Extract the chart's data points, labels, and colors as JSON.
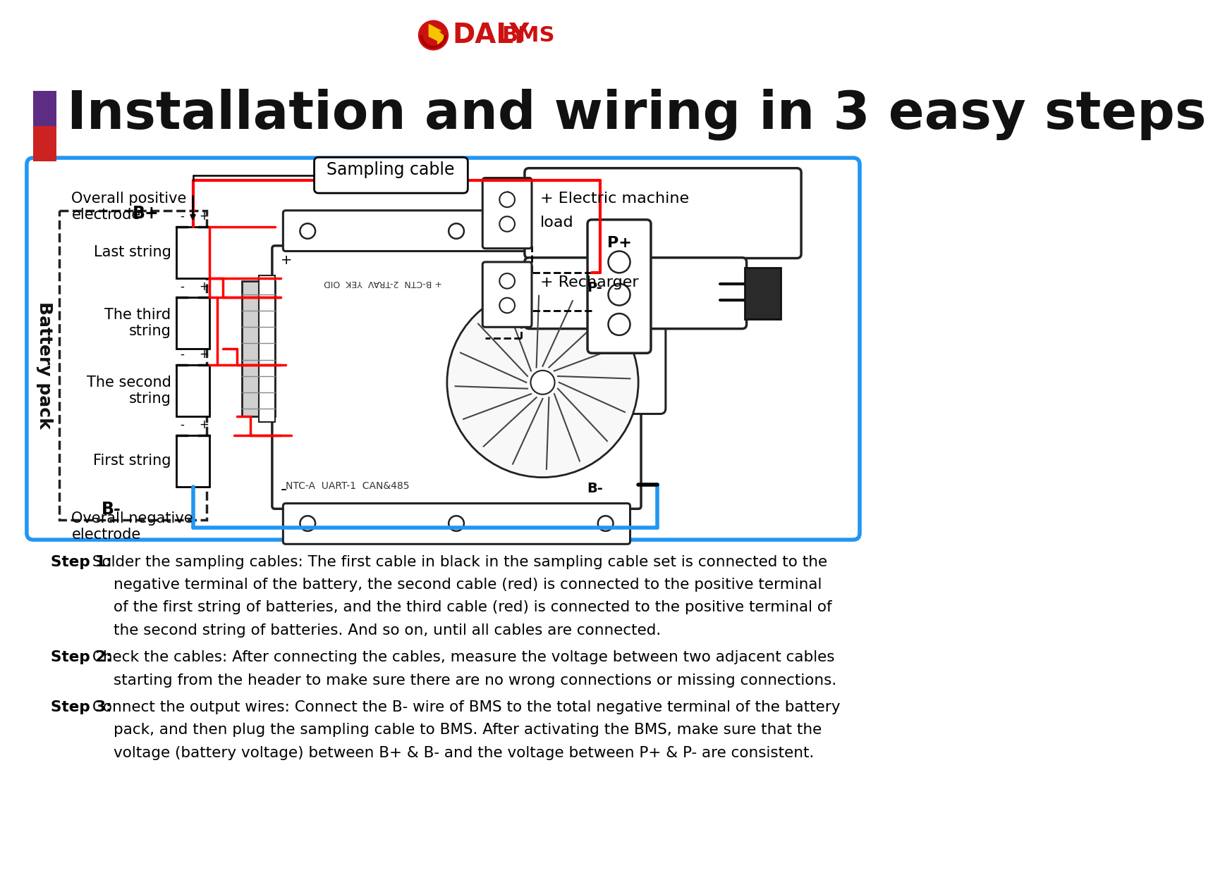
{
  "title": "Installation and wiring in 3 easy steps",
  "bg_color": "#ffffff",
  "step1_bold": "Step 1:",
  "step1_rest": " Solder the sampling cables: The first cable in black in the sampling cable set is connected to the",
  "step1_line2": "negative terminal of the battery, the second cable (red) is connected to the positive terminal",
  "step1_line3": "of the first string of batteries, and the third cable (red) is connected to the positive terminal of",
  "step1_line4": "the second string of batteries. And so on, until all cables are connected.",
  "step2_bold": "Step 2:",
  "step2_rest": " Check the cables: After connecting the cables, measure the voltage between two adjacent cables",
  "step2_line2": "starting from the header to make sure there are no wrong connections or missing connections.",
  "step3_bold": "Step 3:",
  "step3_rest": " Connect the output wires: Connect the B- wire of BMS to the total negative terminal of the battery",
  "step3_line2": "pack, and then plug the sampling cable to BMS. After activating the BMS, make sure that the",
  "step3_line3": "voltage (battery voltage) between B+ & B- and the voltage between P+ & P- are consistent.",
  "logo_text_daly": "DALY",
  "logo_text_bms": "BMS"
}
